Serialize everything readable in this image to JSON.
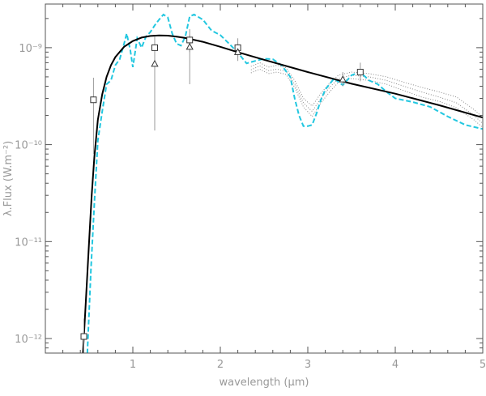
{
  "chart_data": {
    "type": "line",
    "title": "",
    "xlabel": "wavelength (μm)",
    "ylabel": "λ.Flux (W.m⁻²)",
    "xlim": [
      0.0,
      5.0
    ],
    "ylim_log10": [
      -12.15,
      -8.55
    ],
    "yscale": "log",
    "grid": false,
    "legend": "none",
    "x_ticks": [
      "1",
      "2",
      "3",
      "4",
      "5"
    ],
    "y_ticks": [
      "10⁻¹²",
      "10⁻¹¹",
      "10⁻¹⁰",
      "10⁻⁹"
    ],
    "y_tick_values": [
      1e-12,
      1e-11,
      1e-10,
      1e-09
    ],
    "colors": {
      "blackbody": "#000000",
      "model": "#22c7e0",
      "dotted": "#888888",
      "points": "#333333",
      "errorbars": "#999999",
      "frame": "#555555"
    },
    "series": [
      {
        "style": "solid-black",
        "x": [
          0.43,
          0.45,
          0.48,
          0.5,
          0.53,
          0.56,
          0.6,
          0.65,
          0.7,
          0.75,
          0.8,
          0.9,
          1.0,
          1.1,
          1.2,
          1.3,
          1.4,
          1.5,
          1.6,
          1.8,
          2.0,
          2.2,
          2.5,
          3.0,
          3.5,
          4.0,
          4.5,
          5.0
        ],
        "y": [
          7e-13,
          1.5e-12,
          4.6e-12,
          1e-11,
          3e-11,
          7.5e-11,
          1.8e-10,
          3.3e-10,
          5e-10,
          6.6e-10,
          8e-10,
          1.02e-09,
          1.17e-09,
          1.27e-09,
          1.32e-09,
          1.34e-09,
          1.33e-09,
          1.3e-09,
          1.26e-09,
          1.15e-09,
          1.02e-09,
          9e-10,
          7.5e-10,
          5.6e-10,
          4.25e-10,
          3.35e-10,
          2.55e-10,
          1.9e-10
        ]
      },
      {
        "style": "dashed-cyan",
        "x": [
          0.48,
          0.52,
          0.56,
          0.6,
          0.65,
          0.7,
          0.75,
          0.8,
          0.85,
          0.9,
          0.93,
          0.97,
          1.0,
          1.05,
          1.1,
          1.15,
          1.2,
          1.25,
          1.3,
          1.35,
          1.4,
          1.45,
          1.5,
          1.55,
          1.6,
          1.65,
          1.7,
          1.8,
          1.9,
          2.0,
          2.1,
          2.2,
          2.3,
          2.4,
          2.5,
          2.6,
          2.7,
          2.8,
          2.85,
          2.9,
          2.95,
          3.0,
          3.05,
          3.1,
          3.15,
          3.2,
          3.3,
          3.4,
          3.5,
          3.6,
          3.7,
          3.8,
          3.9,
          4.0,
          4.2,
          4.4,
          4.6,
          4.8,
          5.0
        ],
        "y": [
          7e-13,
          5e-12,
          2.5e-11,
          1.1e-10,
          2.2e-10,
          4.2e-10,
          4.6e-10,
          6.6e-10,
          7.6e-10,
          1.1e-09,
          1.4e-09,
          9.5e-10,
          6.3e-10,
          1.25e-09,
          1e-09,
          1.3e-09,
          1.45e-09,
          1.7e-09,
          1.95e-09,
          2.2e-09,
          2.05e-09,
          1.4e-09,
          1.1e-09,
          1.05e-09,
          1.3e-09,
          2.1e-09,
          2.2e-09,
          1.95e-09,
          1.5e-09,
          1.35e-09,
          1.1e-09,
          8.9e-10,
          6.9e-10,
          7.3e-10,
          7.7e-10,
          7.6e-10,
          6.6e-10,
          5e-10,
          3e-10,
          2e-10,
          1.55e-10,
          1.55e-10,
          1.6e-10,
          2.1e-10,
          2.9e-10,
          3.7e-10,
          4.8e-10,
          4.1e-10,
          5.2e-10,
          5.6e-10,
          4.6e-10,
          4.2e-10,
          3.5e-10,
          3e-10,
          2.75e-10,
          2.45e-10,
          1.95e-10,
          1.6e-10,
          1.45e-10
        ]
      },
      {
        "style": "dotted-gray",
        "x": [
          2.35,
          2.45,
          2.55,
          2.65,
          2.75,
          2.85,
          2.95,
          3.05,
          3.15,
          3.25,
          3.35,
          3.5,
          3.7,
          3.9,
          4.1,
          4.3,
          4.5,
          4.7,
          4.9,
          5.0
        ],
        "y": [
          6.4e-10,
          7e-10,
          6.3e-10,
          6.6e-10,
          6.2e-10,
          4.6e-10,
          3e-10,
          2.5e-10,
          3.4e-10,
          4.3e-10,
          5.2e-10,
          5.6e-10,
          5.4e-10,
          5e-10,
          4.4e-10,
          3.9e-10,
          3.5e-10,
          3.1e-10,
          2.3e-10,
          1.9e-10
        ]
      },
      {
        "style": "dotted-gray",
        "x": [
          2.35,
          2.45,
          2.55,
          2.65,
          2.75,
          2.85,
          2.95,
          3.05,
          3.15,
          3.25,
          3.35,
          3.5,
          3.7,
          3.9,
          4.1,
          4.3,
          4.5,
          4.7,
          4.9,
          5.0
        ],
        "y": [
          5.9e-10,
          6.5e-10,
          5.8e-10,
          6e-10,
          5.7e-10,
          4.2e-10,
          2.7e-10,
          2.2e-10,
          3e-10,
          3.9e-10,
          4.8e-10,
          5.2e-10,
          5e-10,
          4.6e-10,
          4e-10,
          3.5e-10,
          3.1e-10,
          2.7e-10,
          2e-10,
          1.65e-10
        ]
      },
      {
        "style": "dotted-gray",
        "x": [
          2.35,
          2.45,
          2.55,
          2.65,
          2.75,
          2.85,
          2.95,
          3.05,
          3.15,
          3.25,
          3.35,
          3.5,
          3.7,
          3.9,
          4.1,
          4.3,
          4.5,
          4.7,
          4.9,
          5.0
        ],
        "y": [
          5.5e-10,
          6e-10,
          5.4e-10,
          5.6e-10,
          5.3e-10,
          3.9e-10,
          2.45e-10,
          1.95e-10,
          2.7e-10,
          3.5e-10,
          4.4e-10,
          4.8e-10,
          4.6e-10,
          4.2e-10,
          3.6e-10,
          3.1e-10,
          2.8e-10,
          2.4e-10,
          1.8e-10,
          1.5e-10
        ]
      }
    ],
    "squares": [
      {
        "x": 0.44,
        "y": 1.05e-12,
        "ylo": 7e-13,
        "yhi": 1.6e-12
      },
      {
        "x": 0.55,
        "y": 2.9e-10,
        "ylo": 8e-11,
        "yhi": 4.9e-10
      },
      {
        "x": 1.25,
        "y": 1e-09,
        "ylo": 7.5e-10,
        "yhi": 1.3e-09
      },
      {
        "x": 1.65,
        "y": 1.2e-09,
        "ylo": 9e-10,
        "yhi": 1.55e-09
      },
      {
        "x": 2.2,
        "y": 1e-09,
        "ylo": 8e-10,
        "yhi": 1.25e-09
      },
      {
        "x": 3.6,
        "y": 5.6e-10,
        "ylo": 4.5e-10,
        "yhi": 7e-10
      }
    ],
    "triangles": [
      {
        "x": 1.25,
        "y": 6.8e-10,
        "ylo": 1.4e-10,
        "yhi": 8.9e-10
      },
      {
        "x": 1.65,
        "y": 1.02e-09,
        "ylo": 4.2e-10,
        "yhi": 1.35e-09
      },
      {
        "x": 2.2,
        "y": 9e-10,
        "ylo": 7.3e-10,
        "yhi": 1.1e-09
      },
      {
        "x": 3.4,
        "y": 4.7e-10,
        "ylo": 4e-10,
        "yhi": 5.6e-10
      }
    ]
  }
}
